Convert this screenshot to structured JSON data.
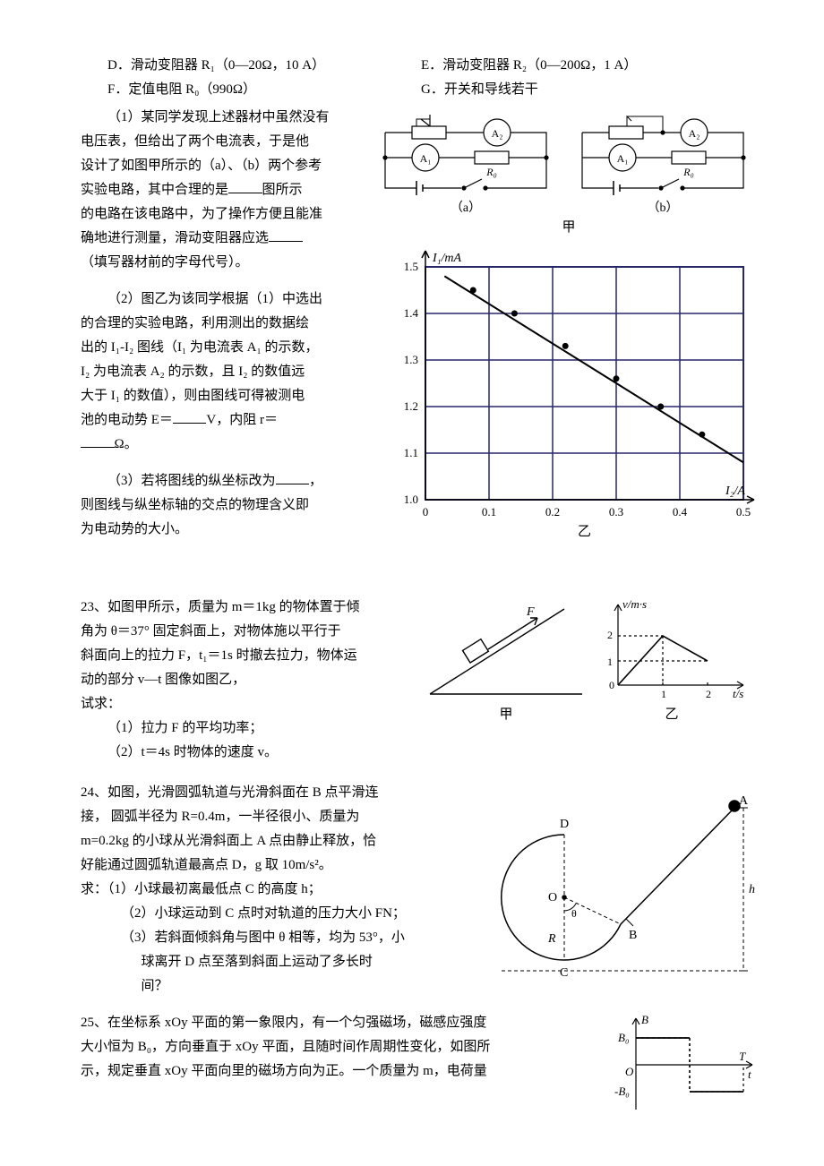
{
  "optD": "D．滑动变阻器 R₁（0—20Ω，10 A）",
  "optE": "E．滑动变阻器 R₂（0—200Ω，1 A）",
  "optF": "F．定值电阻 R₀（990Ω）",
  "optG": "G．开关和导线若干",
  "q1": {
    "l1": "（1）某同学发现上述器材中虽然没有",
    "l2": "电压表，但给出了两个电流表，于是他",
    "l3": "设计了如图甲所示的（a）、（b）两个参考",
    "l4a": "实验电路，其中合理的是",
    "l4b": "图所示",
    "l5": "的电路在该电路中，为了操作方便且能准",
    "l6": "确地进行测量，滑动变阻器应选",
    "l7": "（填写器材前的字母代号）。"
  },
  "q2": {
    "l1": "（2）图乙为该同学根据（1）中选出",
    "l2": "的合理的实验电路，利用测出的数据绘",
    "l3": "出的 I₁-I₂ 图线（I₁ 为电流表 A₁ 的示数，",
    "l4": "I₂ 为电流表 A₂ 的示数，且 I₂ 的数值远",
    "l5": "大于 I₁ 的数值），则由图线可得被测电",
    "l6a": "池的电动势 E＝",
    "l6b": "V，内阻 r＝",
    "l7": "Ω。"
  },
  "q3": {
    "l1a": "（3）若将图线的纵坐标改为",
    "l1b": "，",
    "l2": "则图线与纵坐标轴的交点的物理含义即",
    "l3": "为电动势的大小。"
  },
  "q23": {
    "l1": "23、如图甲所示，质量为 m＝1kg 的物体置于倾",
    "l2": "角为 θ＝37° 固定斜面上，对物体施以平行于",
    "l3": "斜面向上的拉力 F，t₁＝1s 时撤去拉力，物体运",
    "l4": "动的部分 v—t 图像如图乙，",
    "l5": "试求：",
    "p1": "（1）拉力 F 的平均功率；",
    "p2": "（2）t＝4s 时物体的速度 v。",
    "capA": "甲",
    "capB": "乙"
  },
  "q24": {
    "l1": "24、如图，光滑圆弧轨道与光滑斜面在 B 点平滑连",
    "l2": "接， 圆弧半径为 R=0.4m，一半径很小、质量为",
    "l3": "m=0.2kg 的小球从光滑斜面上 A 点由静止释放，恰",
    "l4": "好能通过圆弧轨道最高点 D，g 取 10m/s²。",
    "l5": "求：（1）小球最初离最低点 C 的高度 h；",
    "p2": "（2）小球运动到 C 点时对轨道的压力大小 FN；",
    "p3": "（3）若斜面倾斜角与图中 θ 相等，均为 53°，小",
    "p3b": "球离开 D 点至落到斜面上运动了多长时",
    "p3c": "间？"
  },
  "q25": {
    "l1": "25、在坐标系 xOy 平面的第一象限内，有一个匀强磁场，磁感应强度",
    "l2": "大小恒为 B₀，方向垂直于 xOy 平面，且随时间作周期性变化，如图所",
    "l3": "示，规定垂直 xOy 平面向里的磁场方向为正。一个质量为 m，电荷量"
  },
  "circuits": {
    "caption": "甲",
    "a": "（a）",
    "b": "（b）",
    "A1": "A₁",
    "A2": "A₂",
    "R0": "R₀"
  },
  "chart": {
    "ylabel": "I₁/mA",
    "xlabel": "I₂/A",
    "caption": "乙",
    "yticks": [
      "1.0",
      "1.1",
      "1.2",
      "1.3",
      "1.4",
      "1.5"
    ],
    "xticks": [
      "0",
      "0.1",
      "0.2",
      "0.3",
      "0.4",
      "0.5"
    ],
    "grid_color": "#26266b",
    "points": [
      {
        "x": 0.075,
        "y": 1.45
      },
      {
        "x": 0.14,
        "y": 1.4
      },
      {
        "x": 0.22,
        "y": 1.33
      },
      {
        "x": 0.3,
        "y": 1.26
      },
      {
        "x": 0.37,
        "y": 1.2
      },
      {
        "x": 0.435,
        "y": 1.14
      }
    ],
    "line": {
      "x1": 0.03,
      "y1": 1.48,
      "x2": 0.5,
      "y2": 1.08
    }
  },
  "vt": {
    "ylabel": "v/m·s",
    "xlabel": "t/s",
    "yticks": [
      "1",
      "2"
    ],
    "xticks": [
      "0",
      "1",
      "2"
    ]
  },
  "loop": {
    "D": "D",
    "A": "A",
    "O": "O",
    "B": "B",
    "C": "C",
    "R": "R",
    "h": "h",
    "theta": "θ"
  },
  "bt": {
    "ylabel": "B",
    "B0": "B₀",
    "nB0": "-B₀",
    "O": "O",
    "T": "T",
    "xlabel": "t"
  }
}
